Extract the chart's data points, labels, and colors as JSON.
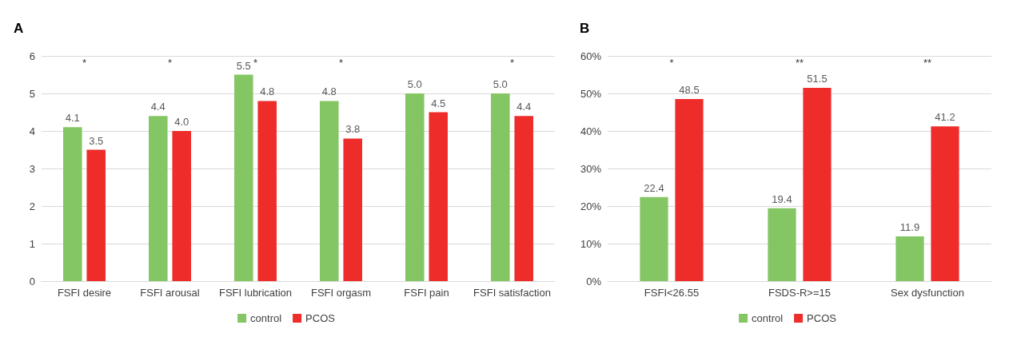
{
  "chart_data": [
    {
      "type": "bar",
      "title": "A",
      "categories": [
        "FSFI desire",
        "FSFI arousal",
        "FSFI lubrication",
        "FSFI orgasm",
        "FSFI pain",
        "FSFI satisfaction"
      ],
      "series": [
        {
          "name": "control",
          "color": "#84c564",
          "values": [
            4.1,
            4.4,
            5.5,
            4.8,
            5.0,
            5.0
          ],
          "value_labels": [
            "4.1",
            "4.4",
            "5.5",
            "4.8",
            "5.0",
            "5.0"
          ]
        },
        {
          "name": "PCOS",
          "color": "#ee2d2b",
          "values": [
            3.5,
            4.0,
            4.8,
            3.8,
            4.5,
            4.4
          ],
          "value_labels": [
            "3.5",
            "4.0",
            "4.8",
            "3.8",
            "4.5",
            "4.4"
          ]
        }
      ],
      "ylim": [
        0,
        6
      ],
      "yticks": [
        0,
        1,
        2,
        3,
        4,
        5,
        6
      ],
      "grid": "y",
      "legend": "bottom",
      "annotations": [
        "*",
        "*",
        "*",
        "*",
        null,
        "*"
      ]
    },
    {
      "type": "bar",
      "title": "B",
      "categories": [
        "FSFI<26.55",
        "FSDS-R>=15",
        "Sex dysfunction"
      ],
      "series": [
        {
          "name": "control",
          "color": "#84c564",
          "values": [
            22.4,
            19.4,
            11.9
          ],
          "value_labels": [
            "22.4",
            "19.4",
            "11.9"
          ]
        },
        {
          "name": "PCOS",
          "color": "#ee2d2b",
          "values": [
            48.5,
            51.5,
            41.2
          ],
          "value_labels": [
            "48.5",
            "51.5",
            "41.2"
          ]
        }
      ],
      "ylim": [
        0,
        60
      ],
      "yticks": [
        {
          "value": 0,
          "label": "0%"
        },
        {
          "value": 10,
          "label": "10%"
        },
        {
          "value": 20,
          "label": "20%"
        },
        {
          "value": 30,
          "label": "30%"
        },
        {
          "value": 40,
          "label": "40%"
        },
        {
          "value": 50,
          "label": "50%"
        },
        {
          "value": 60,
          "label": "60%"
        }
      ],
      "grid": "y",
      "legend": "bottom",
      "annotations": [
        "*",
        "**",
        "**"
      ]
    }
  ]
}
